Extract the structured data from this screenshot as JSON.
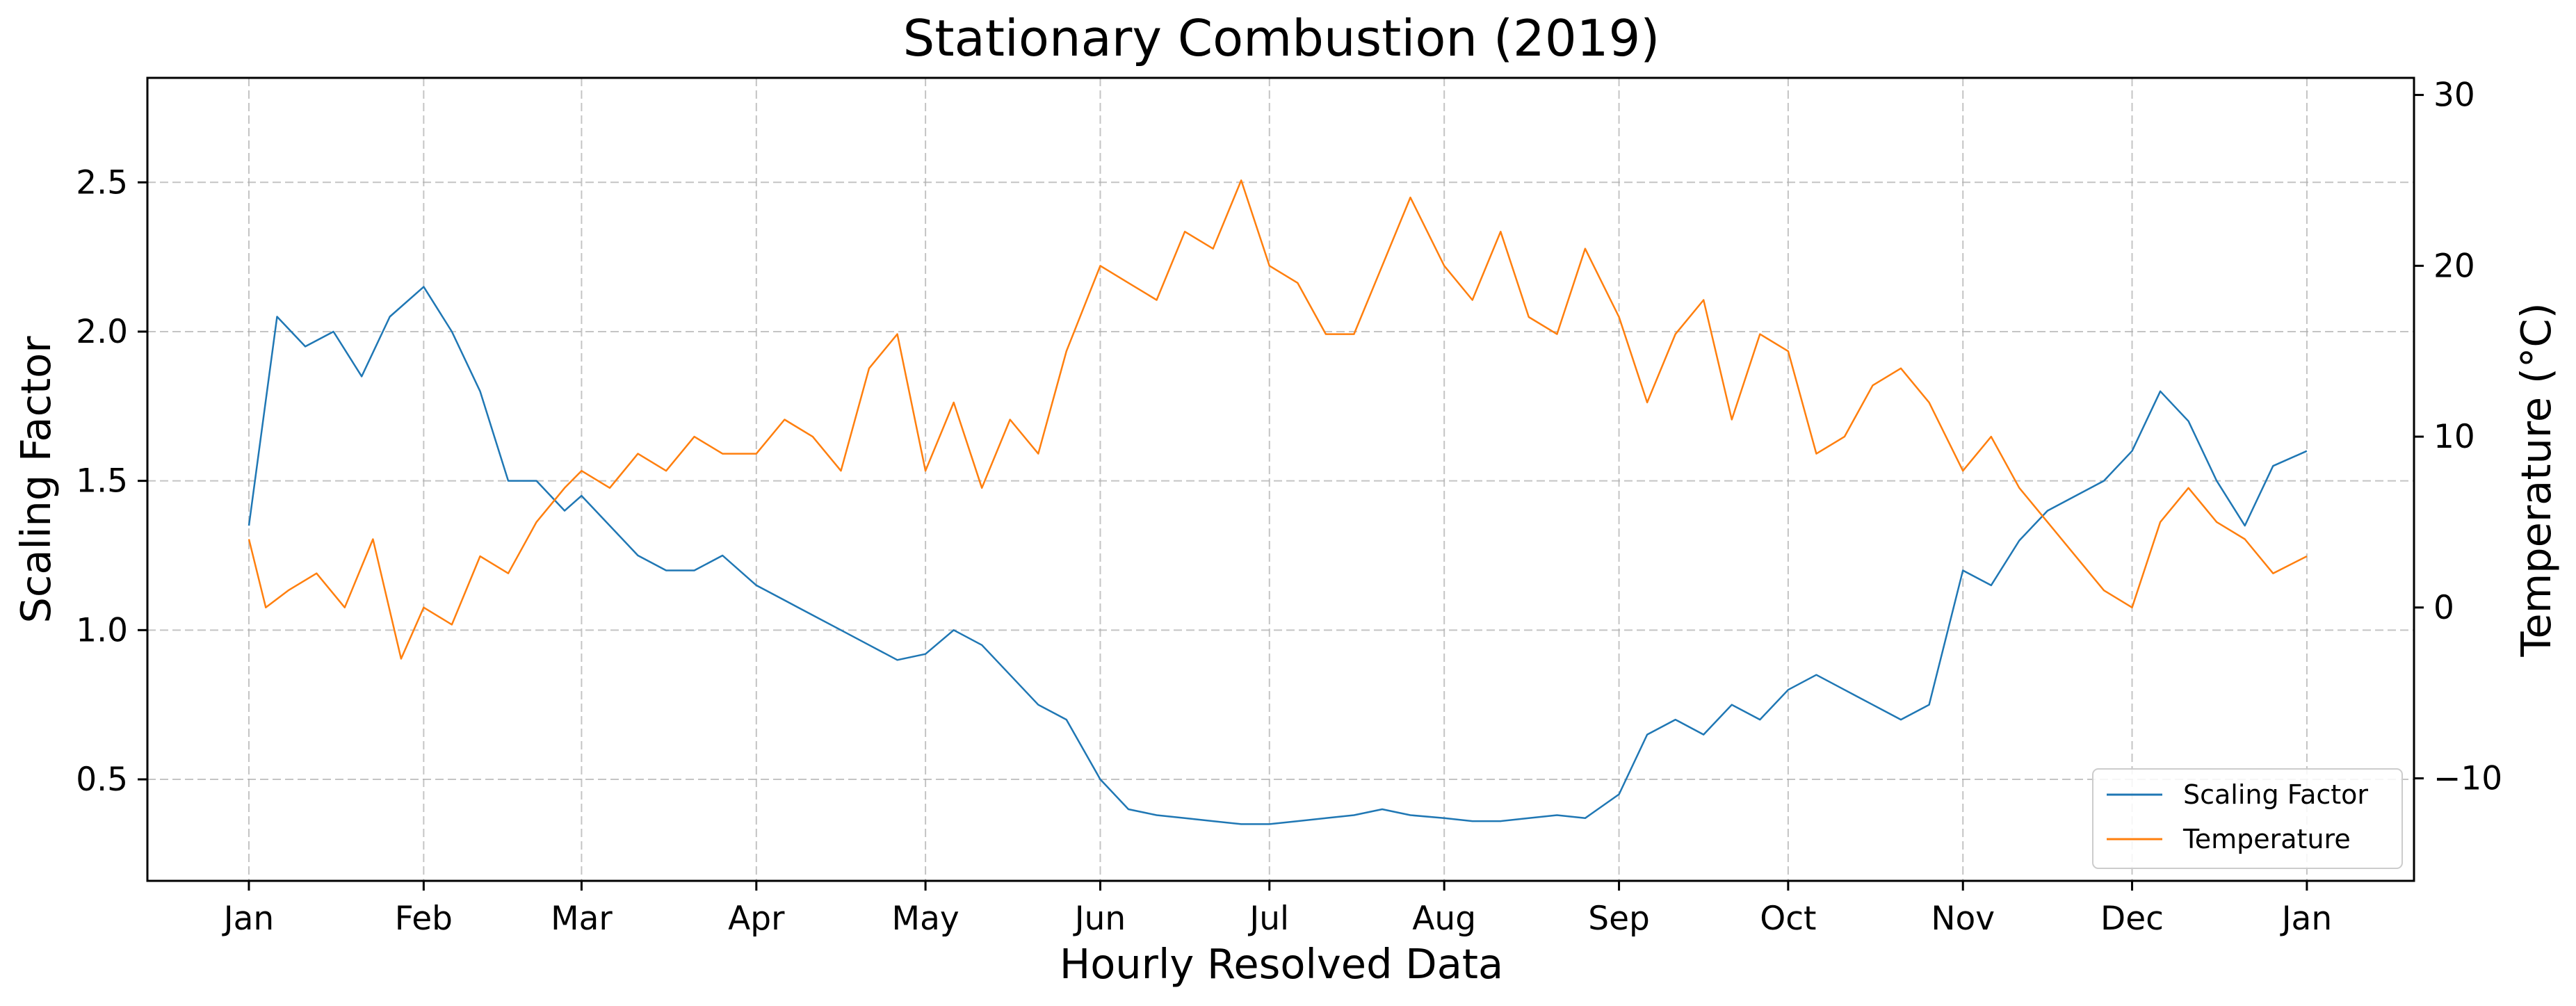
{
  "chart_data": {
    "type": "line",
    "title": "Stationary Combustion (2019)",
    "xlabel": "Hourly Resolved Data",
    "ylabel_left": "Scaling Factor",
    "ylabel_right": "Temperature (°C)",
    "x_ticks": [
      "Jan",
      "Feb",
      "Mar",
      "Apr",
      "May",
      "Jun",
      "Jul",
      "Aug",
      "Sep",
      "Oct",
      "Nov",
      "Dec",
      "Jan"
    ],
    "x_tick_days": [
      0,
      31,
      59,
      90,
      120,
      151,
      181,
      212,
      243,
      273,
      304,
      334,
      365
    ],
    "xlim_days": [
      -18,
      384
    ],
    "y_left_ticks": [
      "0.5",
      "1.0",
      "1.5",
      "2.0",
      "2.5"
    ],
    "y_left_tick_values": [
      0.5,
      1.0,
      1.5,
      2.0,
      2.5
    ],
    "ylim_left": [
      0.16,
      2.85
    ],
    "y_right_ticks": [
      "−10",
      "0",
      "10",
      "20",
      "30"
    ],
    "y_right_tick_values": [
      -10,
      0,
      10,
      20,
      30
    ],
    "ylim_right": [
      -16,
      31
    ],
    "grid": true,
    "legend_position": "lower-right",
    "series": [
      {
        "name": "Scaling Factor",
        "axis": "left",
        "color": "#1f77b4",
        "points": [
          [
            0,
            1.35
          ],
          [
            5,
            2.05
          ],
          [
            10,
            1.95
          ],
          [
            15,
            2.0
          ],
          [
            20,
            1.85
          ],
          [
            25,
            2.05
          ],
          [
            31,
            2.15
          ],
          [
            36,
            2.0
          ],
          [
            41,
            1.8
          ],
          [
            46,
            1.5
          ],
          [
            51,
            1.5
          ],
          [
            56,
            1.4
          ],
          [
            59,
            1.45
          ],
          [
            64,
            1.35
          ],
          [
            69,
            1.25
          ],
          [
            74,
            1.2
          ],
          [
            79,
            1.2
          ],
          [
            84,
            1.25
          ],
          [
            90,
            1.15
          ],
          [
            95,
            1.1
          ],
          [
            100,
            1.05
          ],
          [
            105,
            1.0
          ],
          [
            110,
            0.95
          ],
          [
            115,
            0.9
          ],
          [
            120,
            0.92
          ],
          [
            125,
            1.0
          ],
          [
            130,
            0.95
          ],
          [
            135,
            0.85
          ],
          [
            140,
            0.75
          ],
          [
            145,
            0.7
          ],
          [
            151,
            0.5
          ],
          [
            156,
            0.4
          ],
          [
            161,
            0.38
          ],
          [
            166,
            0.37
          ],
          [
            171,
            0.36
          ],
          [
            176,
            0.35
          ],
          [
            181,
            0.35
          ],
          [
            186,
            0.36
          ],
          [
            191,
            0.37
          ],
          [
            196,
            0.38
          ],
          [
            201,
            0.4
          ],
          [
            206,
            0.38
          ],
          [
            212,
            0.37
          ],
          [
            217,
            0.36
          ],
          [
            222,
            0.36
          ],
          [
            227,
            0.37
          ],
          [
            232,
            0.38
          ],
          [
            237,
            0.37
          ],
          [
            243,
            0.45
          ],
          [
            248,
            0.65
          ],
          [
            253,
            0.7
          ],
          [
            258,
            0.65
          ],
          [
            263,
            0.75
          ],
          [
            268,
            0.7
          ],
          [
            273,
            0.8
          ],
          [
            278,
            0.85
          ],
          [
            283,
            0.8
          ],
          [
            288,
            0.75
          ],
          [
            293,
            0.7
          ],
          [
            298,
            0.75
          ],
          [
            304,
            1.2
          ],
          [
            309,
            1.15
          ],
          [
            314,
            1.3
          ],
          [
            319,
            1.4
          ],
          [
            324,
            1.45
          ],
          [
            329,
            1.5
          ],
          [
            334,
            1.6
          ],
          [
            339,
            1.8
          ],
          [
            344,
            1.7
          ],
          [
            349,
            1.5
          ],
          [
            354,
            1.35
          ],
          [
            359,
            1.55
          ],
          [
            365,
            1.6
          ]
        ]
      },
      {
        "name": "Temperature",
        "axis": "right",
        "color": "#ff7f0e",
        "points": [
          [
            0,
            4
          ],
          [
            3,
            0
          ],
          [
            7,
            1
          ],
          [
            12,
            2
          ],
          [
            17,
            0
          ],
          [
            22,
            4
          ],
          [
            27,
            -3
          ],
          [
            31,
            0
          ],
          [
            36,
            -1
          ],
          [
            41,
            3
          ],
          [
            46,
            2
          ],
          [
            51,
            5
          ],
          [
            56,
            7
          ],
          [
            59,
            8
          ],
          [
            64,
            7
          ],
          [
            69,
            9
          ],
          [
            74,
            8
          ],
          [
            79,
            10
          ],
          [
            84,
            9
          ],
          [
            90,
            9
          ],
          [
            95,
            11
          ],
          [
            100,
            10
          ],
          [
            105,
            8
          ],
          [
            110,
            14
          ],
          [
            115,
            16
          ],
          [
            120,
            8
          ],
          [
            125,
            12
          ],
          [
            130,
            7
          ],
          [
            135,
            11
          ],
          [
            140,
            9
          ],
          [
            145,
            15
          ],
          [
            151,
            20
          ],
          [
            156,
            19
          ],
          [
            161,
            18
          ],
          [
            166,
            22
          ],
          [
            171,
            21
          ],
          [
            176,
            25
          ],
          [
            181,
            20
          ],
          [
            186,
            19
          ],
          [
            191,
            16
          ],
          [
            196,
            16
          ],
          [
            201,
            20
          ],
          [
            206,
            24
          ],
          [
            212,
            20
          ],
          [
            217,
            18
          ],
          [
            222,
            22
          ],
          [
            227,
            17
          ],
          [
            232,
            16
          ],
          [
            237,
            21
          ],
          [
            243,
            17
          ],
          [
            248,
            12
          ],
          [
            253,
            16
          ],
          [
            258,
            18
          ],
          [
            263,
            11
          ],
          [
            268,
            16
          ],
          [
            273,
            15
          ],
          [
            278,
            9
          ],
          [
            283,
            10
          ],
          [
            288,
            13
          ],
          [
            293,
            14
          ],
          [
            298,
            12
          ],
          [
            304,
            8
          ],
          [
            309,
            10
          ],
          [
            314,
            7
          ],
          [
            319,
            5
          ],
          [
            324,
            3
          ],
          [
            329,
            1
          ],
          [
            334,
            0
          ],
          [
            339,
            5
          ],
          [
            344,
            7
          ],
          [
            349,
            5
          ],
          [
            354,
            4
          ],
          [
            359,
            2
          ],
          [
            365,
            3
          ]
        ]
      }
    ]
  }
}
